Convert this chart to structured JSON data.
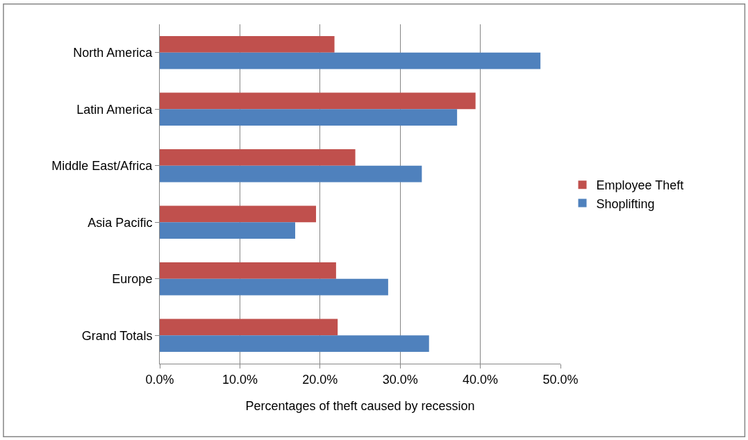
{
  "chart_data": {
    "type": "bar",
    "orientation": "horizontal",
    "xlabel": "Percentages of theft caused by recession",
    "categories": [
      "North America",
      "Latin America",
      "Middle East/Africa",
      "Asia Pacific",
      "Europe",
      "Grand Totals"
    ],
    "series": [
      {
        "name": "Employee Theft",
        "color": "#c0504d",
        "values": [
          21.8,
          39.4,
          24.4,
          19.5,
          22.0,
          22.2
        ]
      },
      {
        "name": "Shoplifting",
        "color": "#4f81bd",
        "values": [
          47.5,
          37.1,
          32.7,
          16.9,
          28.5,
          33.6
        ]
      }
    ],
    "xlim": [
      0,
      50
    ],
    "xticks": [
      {
        "value": 0,
        "label": "0.0%"
      },
      {
        "value": 10,
        "label": "10.0%"
      },
      {
        "value": 20,
        "label": "20.0%"
      },
      {
        "value": 30,
        "label": "30.0%"
      },
      {
        "value": 40,
        "label": "40.0%"
      },
      {
        "value": 50,
        "label": "50.0%"
      }
    ],
    "grid": "x",
    "legend": "right"
  }
}
